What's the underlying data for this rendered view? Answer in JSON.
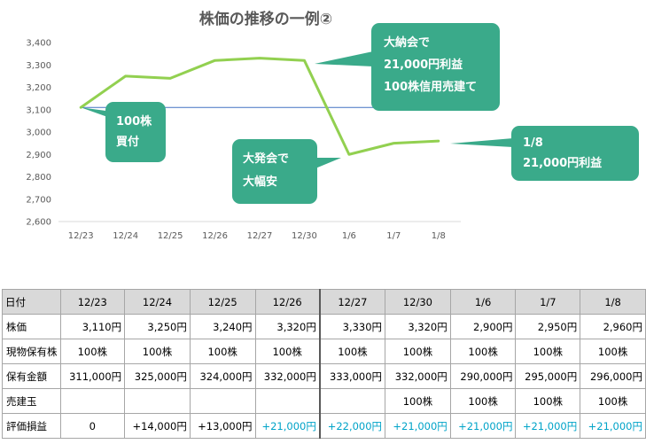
{
  "chart_data": {
    "type": "line",
    "title": "株価の推移の一例②",
    "categories": [
      "12/23",
      "12/24",
      "12/25",
      "12/26",
      "12/27",
      "12/30",
      "1/6",
      "1/7",
      "1/8"
    ],
    "series": [
      {
        "values": [
          3110,
          3250,
          3240,
          3320,
          3330,
          3320,
          2900,
          2950,
          2960
        ]
      }
    ],
    "reference_line": 3110,
    "ylim": [
      2600,
      3400
    ],
    "yticks": [
      2600,
      2700,
      2800,
      2900,
      3000,
      3100,
      3200,
      3300,
      3400
    ],
    "ytick_labels": [
      "2,600",
      "2,700",
      "2,800",
      "2,900",
      "3,000",
      "3,100",
      "3,200",
      "3,300",
      "3,400"
    ],
    "grid": false,
    "colors": {
      "line": "#92d050",
      "reference": "#4472c4",
      "callout": "#3aaa8a",
      "axis_text": "#595959"
    },
    "callouts": [
      {
        "lines": [
          "100株",
          "買付"
        ]
      },
      {
        "lines": [
          "大発会で",
          "大幅安"
        ]
      },
      {
        "lines": [
          "大納会で",
          "21,000円利益",
          "100株信用売建て"
        ]
      },
      {
        "lines": [
          "1/8",
          "21,000円利益"
        ]
      }
    ]
  },
  "table": {
    "header": [
      "日付",
      "12/23",
      "12/24",
      "12/25",
      "12/26",
      "12/27",
      "12/30",
      "1/6",
      "1/7",
      "1/8"
    ],
    "rows": [
      {
        "label": "株価",
        "cells": [
          "3,110円",
          "3,250円",
          "3,240円",
          "3,320円",
          "3,330円",
          "3,320円",
          "2,900円",
          "2,950円",
          "2,960円"
        ]
      },
      {
        "label": "現物保有株",
        "cells": [
          "100株",
          "100株",
          "100株",
          "100株",
          "100株",
          "100株",
          "100株",
          "100株",
          "100株"
        ]
      },
      {
        "label": "保有金額",
        "cells": [
          "311,000円",
          "325,000円",
          "324,000円",
          "332,000円",
          "333,000円",
          "332,000円",
          "290,000円",
          "295,000円",
          "296,000円"
        ]
      },
      {
        "label": "売建玉",
        "cells": [
          "",
          "",
          "",
          "",
          "",
          "100株",
          "100株",
          "100株",
          "100株"
        ]
      },
      {
        "label": "評価損益",
        "cells": [
          "0",
          "+14,000円",
          "+13,000円",
          "+21,000円",
          "+22,000円",
          "+21,000円",
          "+21,000円",
          "+21,000円",
          "+21,000円"
        ]
      }
    ],
    "positive_color": "#00a3c8"
  }
}
